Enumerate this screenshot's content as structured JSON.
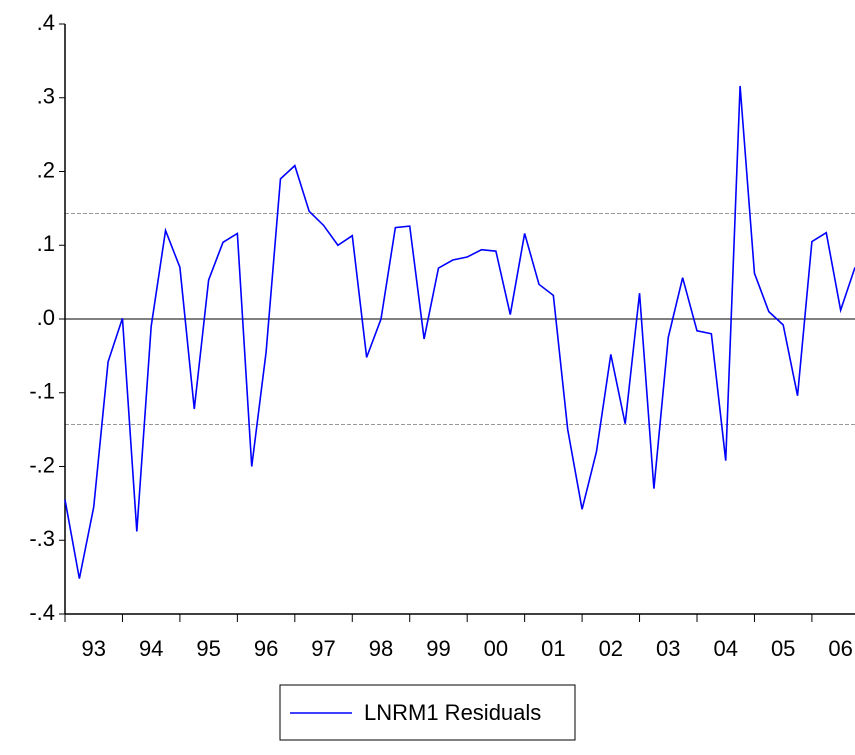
{
  "chart_data": {
    "type": "line",
    "x": [
      1993,
      1993.25,
      1993.5,
      1993.75,
      1994,
      1994.25,
      1994.5,
      1994.75,
      1995,
      1995.25,
      1995.5,
      1995.75,
      1996,
      1996.25,
      1996.5,
      1996.75,
      1997,
      1997.25,
      1997.5,
      1997.75,
      1998,
      1998.25,
      1998.5,
      1998.75,
      1999,
      1999.25,
      1999.5,
      1999.75,
      2000,
      2000.25,
      2000.5,
      2000.75,
      2001,
      2001.25,
      2001.5,
      2001.75,
      2002,
      2002.25,
      2002.5,
      2002.75,
      2003,
      2003.25,
      2003.5,
      2003.75,
      2004,
      2004.25,
      2004.5,
      2004.75,
      2005,
      2005.25,
      2005.5,
      2005.75,
      2006,
      2006.25,
      2006.5,
      2006.75
    ],
    "series": [
      {
        "name": "LNRM1 Residuals",
        "color": "#0000ff",
        "values": [
          -0.245,
          -0.352,
          -0.255,
          -0.058,
          0.001,
          -0.288,
          -0.01,
          0.12,
          0.07,
          -0.122,
          0.053,
          0.104,
          0.116,
          -0.2,
          -0.045,
          0.19,
          0.208,
          0.146,
          0.127,
          0.1,
          0.113,
          -0.052,
          0.0,
          0.124,
          0.126,
          -0.027,
          0.069,
          0.08,
          0.084,
          0.094,
          0.092,
          0.006,
          0.116,
          0.047,
          0.032,
          -0.15,
          -0.258,
          -0.18,
          -0.048,
          -0.142,
          0.035,
          -0.23,
          -0.025,
          0.056,
          -0.016,
          -0.02,
          -0.192,
          0.316,
          0.062,
          0.01,
          -0.008,
          -0.104,
          0.105,
          0.117,
          0.012,
          0.07
        ]
      }
    ],
    "xlim": [
      1993,
      2006.75
    ],
    "xticks": [
      {
        "value": 1993,
        "label": "93"
      },
      {
        "value": 1994,
        "label": "94"
      },
      {
        "value": 1995,
        "label": "95"
      },
      {
        "value": 1996,
        "label": "96"
      },
      {
        "value": 1997,
        "label": "97"
      },
      {
        "value": 1998,
        "label": "98"
      },
      {
        "value": 1999,
        "label": "99"
      },
      {
        "value": 2000,
        "label": "00"
      },
      {
        "value": 2001,
        "label": "01"
      },
      {
        "value": 2002,
        "label": "02"
      },
      {
        "value": 2003,
        "label": "03"
      },
      {
        "value": 2004,
        "label": "04"
      },
      {
        "value": 2005,
        "label": "05"
      },
      {
        "value": 2006,
        "label": "06"
      }
    ],
    "ylim": [
      -0.4,
      0.4
    ],
    "yticks": [
      {
        "value": -0.4,
        "label": "-.4"
      },
      {
        "value": -0.3,
        "label": "-.3"
      },
      {
        "value": -0.2,
        "label": "-.2"
      },
      {
        "value": -0.1,
        "label": "-.1"
      },
      {
        "value": 0,
        "label": ".0"
      },
      {
        "value": 0.1,
        "label": ".1"
      },
      {
        "value": 0.2,
        "label": ".2"
      },
      {
        "value": 0.3,
        "label": ".3"
      },
      {
        "value": 0.4,
        "label": ".4"
      }
    ],
    "reference_lines": [
      -0.143,
      0.143
    ],
    "zero_line": 0,
    "legend": "bottom"
  }
}
